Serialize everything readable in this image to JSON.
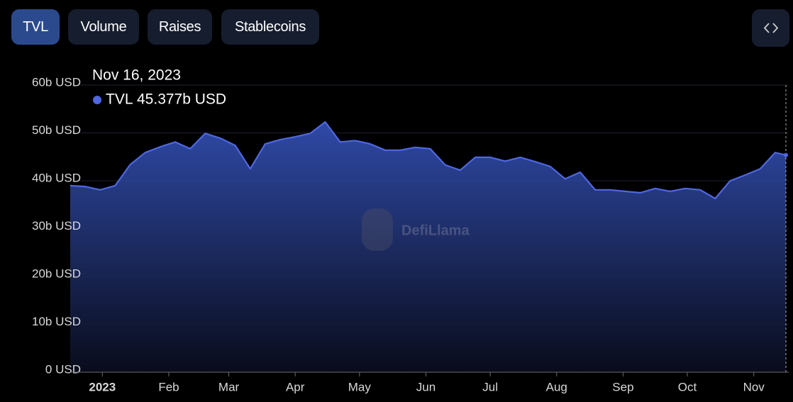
{
  "buttons": [
    "TVL",
    "Volume",
    "Raises",
    "Stablecoins"
  ],
  "watermark": "DefiLlama",
  "chart_data": {
    "type": "area",
    "x": [
      "2022-12-17",
      "2022-12-24",
      "2022-12-31",
      "2023-01-07",
      "2023-01-14",
      "2023-01-21",
      "2023-01-28",
      "2023-02-04",
      "2023-02-11",
      "2023-02-18",
      "2023-02-25",
      "2023-03-04",
      "2023-03-11",
      "2023-03-18",
      "2023-03-25",
      "2023-04-01",
      "2023-04-08",
      "2023-04-15",
      "2023-04-22",
      "2023-04-29",
      "2023-05-06",
      "2023-05-13",
      "2023-05-20",
      "2023-05-27",
      "2023-06-03",
      "2023-06-10",
      "2023-06-17",
      "2023-06-24",
      "2023-07-01",
      "2023-07-08",
      "2023-07-15",
      "2023-07-22",
      "2023-07-29",
      "2023-08-05",
      "2023-08-12",
      "2023-08-19",
      "2023-08-26",
      "2023-09-02",
      "2023-09-09",
      "2023-09-16",
      "2023-09-23",
      "2023-09-30",
      "2023-10-07",
      "2023-10-14",
      "2023-10-21",
      "2023-10-28",
      "2023-11-04",
      "2023-11-11",
      "2023-11-16"
    ],
    "series": [
      {
        "name": "TVL",
        "color": "#4f68e0",
        "values": [
          39.0,
          38.8,
          38.1,
          39.0,
          43.4,
          45.9,
          47.1,
          48.1,
          46.7,
          49.9,
          48.9,
          47.4,
          42.5,
          47.7,
          48.6,
          49.2,
          49.9,
          52.3,
          48.1,
          48.4,
          47.7,
          46.4,
          46.4,
          47.0,
          46.7,
          43.3,
          42.2,
          44.9,
          44.9,
          44.1,
          44.9,
          44.0,
          43.0,
          40.4,
          41.8,
          38.1,
          38.1,
          37.8,
          37.5,
          38.4,
          37.8,
          38.4,
          38.1,
          36.3,
          40.0,
          41.2,
          42.5,
          45.9,
          45.377
        ]
      }
    ],
    "xlim": [
      "2022-12-17",
      "2023-11-16"
    ],
    "xticks": [
      {
        "value": "2023-01-01",
        "label": "2023"
      },
      {
        "value": "2023-02-01",
        "label": "Feb"
      },
      {
        "value": "2023-03-01",
        "label": "Mar"
      },
      {
        "value": "2023-04-01",
        "label": "Apr"
      },
      {
        "value": "2023-05-01",
        "label": "May"
      },
      {
        "value": "2023-06-01",
        "label": "Jun"
      },
      {
        "value": "2023-07-01",
        "label": "Jul"
      },
      {
        "value": "2023-08-01",
        "label": "Aug"
      },
      {
        "value": "2023-09-01",
        "label": "Sep"
      },
      {
        "value": "2023-10-01",
        "label": "Oct"
      },
      {
        "value": "2023-11-01",
        "label": "Nov"
      }
    ],
    "ylim": [
      0,
      60
    ],
    "yticks": [
      {
        "value": 0,
        "label": "0 USD"
      },
      {
        "value": 10,
        "label": "10b USD"
      },
      {
        "value": 20,
        "label": "20b USD"
      },
      {
        "value": 30,
        "label": "30b USD"
      },
      {
        "value": 40,
        "label": "40b USD"
      },
      {
        "value": 50,
        "label": "50b USD"
      },
      {
        "value": 60,
        "label": "60b USD"
      }
    ],
    "grid": true,
    "tooltip": {
      "x": "2023-11-16",
      "date": "Nov 16, 2023",
      "value": 45.377,
      "value_label": "45.377b USD"
    }
  }
}
